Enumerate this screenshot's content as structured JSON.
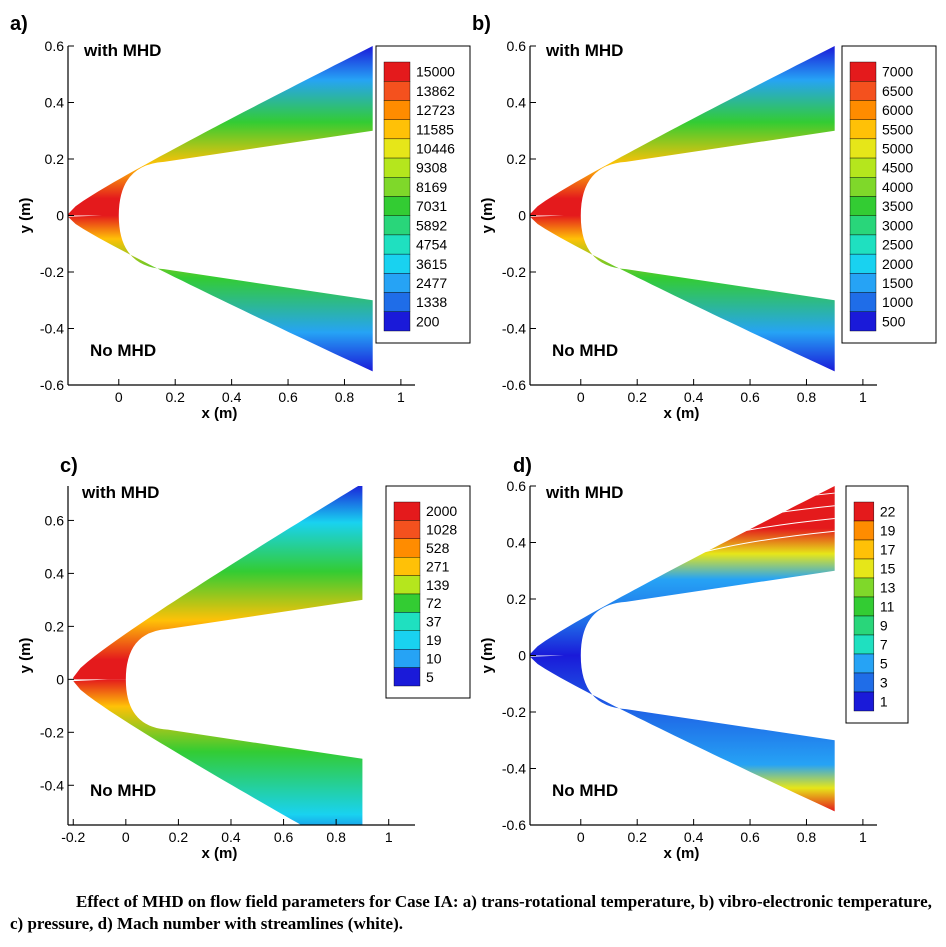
{
  "caption": "Effect of MHD on flow field parameters for Case IA: a) trans-rotational temperature, b) vibro-electronic temperature, c) pressure, d) Mach number with streamlines (white).",
  "chart_data": [
    {
      "type": "contour",
      "panel_label": "a)",
      "top_label": "with MHD",
      "bottom_label": "No MHD",
      "xlabel": "x (m)",
      "ylabel": "y (m)",
      "xlim": [
        -0.18,
        1.05
      ],
      "ylim": [
        -0.6,
        0.6
      ],
      "x_ticks": [
        "0",
        "0.2",
        "0.4",
        "0.6",
        "0.8",
        "1"
      ],
      "x_tick_values": [
        0,
        0.2,
        0.4,
        0.6,
        0.8,
        1
      ],
      "y_ticks": [
        "-0.6",
        "-0.4",
        "-0.2",
        "0",
        "0.2",
        "0.4",
        "0.6"
      ],
      "y_tick_values": [
        -0.6,
        -0.4,
        -0.2,
        0,
        0.2,
        0.4,
        0.6
      ],
      "legend_levels": [
        "15000",
        "13862",
        "12723",
        "11585",
        "10446",
        "9308",
        "8169",
        "7031",
        "5892",
        "4754",
        "3615",
        "2477",
        "1338",
        "200"
      ],
      "legend_colors": [
        "#e41a1c",
        "#f4511e",
        "#ff8c00",
        "#ffc107",
        "#e6e619",
        "#b5e61d",
        "#7fd82a",
        "#33cc33",
        "#29d67a",
        "#1fe0c0",
        "#19d2f0",
        "#26a3f5",
        "#1f6de8",
        "#1a1ad9"
      ],
      "legend_position": "upper-right"
    },
    {
      "type": "contour",
      "panel_label": "b)",
      "top_label": "with MHD",
      "bottom_label": "No MHD",
      "xlabel": "x (m)",
      "ylabel": "y (m)",
      "xlim": [
        -0.18,
        1.05
      ],
      "ylim": [
        -0.6,
        0.6
      ],
      "x_ticks": [
        "0",
        "0.2",
        "0.4",
        "0.6",
        "0.8",
        "1"
      ],
      "x_tick_values": [
        0,
        0.2,
        0.4,
        0.6,
        0.8,
        1
      ],
      "y_ticks": [
        "-0.6",
        "-0.4",
        "-0.2",
        "0",
        "0.2",
        "0.4",
        "0.6"
      ],
      "y_tick_values": [
        -0.6,
        -0.4,
        -0.2,
        0,
        0.2,
        0.4,
        0.6
      ],
      "legend_levels": [
        "7000",
        "6500",
        "6000",
        "5500",
        "5000",
        "4500",
        "4000",
        "3500",
        "3000",
        "2500",
        "2000",
        "1500",
        "1000",
        "500"
      ],
      "legend_colors": [
        "#e41a1c",
        "#f4511e",
        "#ff8c00",
        "#ffc107",
        "#e6e619",
        "#b5e61d",
        "#7fd82a",
        "#33cc33",
        "#29d67a",
        "#1fe0c0",
        "#19d2f0",
        "#26a3f5",
        "#1f6de8",
        "#1a1ad9"
      ],
      "legend_position": "upper-right"
    },
    {
      "type": "contour",
      "panel_label": "c)",
      "top_label": "with MHD",
      "bottom_label": "No MHD",
      "xlabel": "x (m)",
      "ylabel": "y (m)",
      "xlim": [
        -0.22,
        1.1
      ],
      "ylim": [
        -0.55,
        0.73
      ],
      "x_ticks": [
        "-0.2",
        "0",
        "0.2",
        "0.4",
        "0.6",
        "0.8",
        "1"
      ],
      "x_tick_values": [
        -0.2,
        0,
        0.2,
        0.4,
        0.6,
        0.8,
        1
      ],
      "y_ticks": [
        "-0.4",
        "-0.2",
        "0",
        "0.2",
        "0.4",
        "0.6"
      ],
      "y_tick_values": [
        -0.4,
        -0.2,
        0,
        0.2,
        0.4,
        0.6
      ],
      "legend_levels": [
        "2000",
        "1028",
        "528",
        "271",
        "139",
        "72",
        "37",
        "19",
        "10",
        "5"
      ],
      "legend_colors": [
        "#e41a1c",
        "#f4511e",
        "#ff8c00",
        "#ffc107",
        "#b5e61d",
        "#33cc33",
        "#1fe0c0",
        "#19d2f0",
        "#26a3f5",
        "#1a1ad9"
      ],
      "legend_position": "upper-right"
    },
    {
      "type": "contour",
      "panel_label": "d)",
      "top_label": "with MHD",
      "bottom_label": "No MHD",
      "xlabel": "x (m)",
      "ylabel": "y (m)",
      "xlim": [
        -0.18,
        1.05
      ],
      "ylim": [
        -0.6,
        0.6
      ],
      "x_ticks": [
        "0",
        "0.2",
        "0.4",
        "0.6",
        "0.8",
        "1"
      ],
      "x_tick_values": [
        0,
        0.2,
        0.4,
        0.6,
        0.8,
        1
      ],
      "y_ticks": [
        "-0.6",
        "-0.4",
        "-0.2",
        "0",
        "0.2",
        "0.4",
        "0.6"
      ],
      "y_tick_values": [
        -0.6,
        -0.4,
        -0.2,
        0,
        0.2,
        0.4,
        0.6
      ],
      "legend_levels": [
        "22",
        "19",
        "17",
        "15",
        "13",
        "11",
        "9",
        "7",
        "5",
        "3",
        "1"
      ],
      "legend_colors": [
        "#e41a1c",
        "#ff8c00",
        "#ffc107",
        "#e6e619",
        "#7fd82a",
        "#33cc33",
        "#29d67a",
        "#1fe0c0",
        "#26a3f5",
        "#1f6de8",
        "#1a1ad9"
      ],
      "legend_position": "upper-right"
    }
  ]
}
